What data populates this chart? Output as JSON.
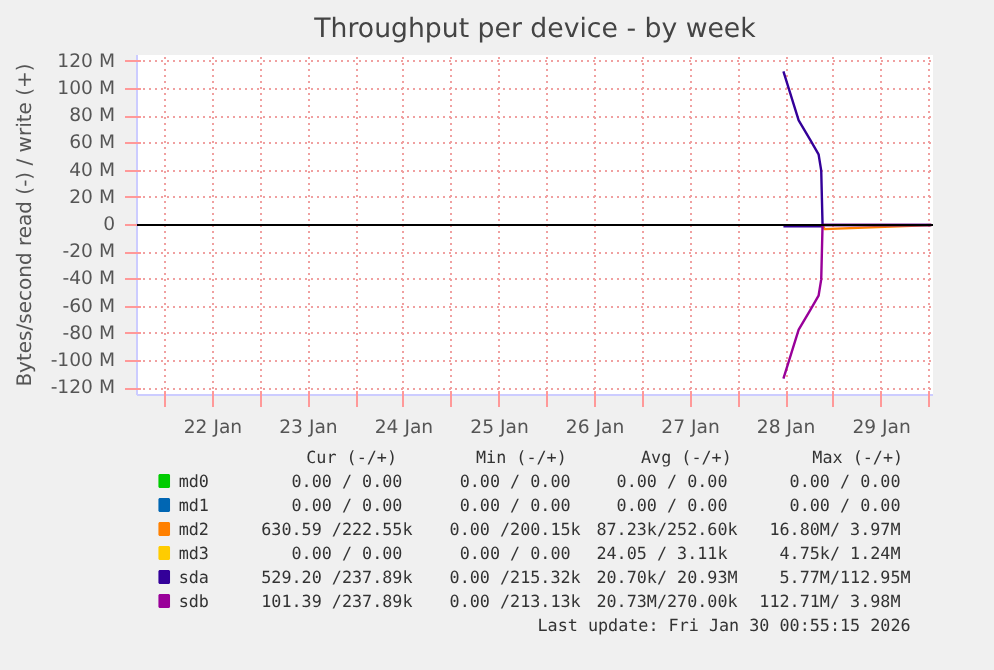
{
  "chart_data": {
    "type": "line",
    "title": "Throughput per device - by week",
    "ylabel": "Bytes/second read (-) / write (+)",
    "x": [
      "2026-01-28T11:20",
      "2026-01-28T15:10",
      "2026-01-28T18:00",
      "2026-01-28T20:10",
      "2026-01-28T20:50",
      "2026-01-28T21:10",
      "2026-01-28T21:40",
      "2026-01-30T00:30"
    ],
    "series": [
      {
        "name": "md0",
        "color": "#00cc00",
        "values": [
          null,
          null,
          null,
          null,
          null,
          null,
          null,
          null
        ]
      },
      {
        "name": "md1",
        "color": "#0066b3",
        "values": [
          null,
          null,
          null,
          null,
          null,
          null,
          null,
          null
        ]
      },
      {
        "name": "md2",
        "color": "#ff8000",
        "values": [
          null,
          null,
          null,
          null,
          null,
          0,
          -3,
          0
        ]
      },
      {
        "name": "md3",
        "color": "#ffcc00",
        "values": [
          null,
          null,
          null,
          null,
          null,
          null,
          null,
          null
        ]
      },
      {
        "name": "sda",
        "color": "#330099",
        "values": [
          113,
          77,
          63,
          52,
          40,
          0,
          0,
          0
        ]
      },
      {
        "color": "#330099",
        "values": [
          -1,
          -1,
          -1,
          -1,
          -1,
          -1,
          null,
          null
        ]
      },
      {
        "name": "sdb",
        "color": "#990099",
        "values": [
          -113,
          -77,
          -63,
          -52,
          -40,
          0,
          0,
          0
        ]
      }
    ],
    "xlim": [
      "2026-01-21T16:55",
      "2026-01-30T00:55"
    ],
    "xticks": [
      {
        "value": "2026-01-22T00:00",
        "label": null
      },
      {
        "value": "2026-01-22T12:00",
        "label": "22 Jan"
      },
      {
        "value": "2026-01-23T00:00",
        "label": null
      },
      {
        "value": "2026-01-23T12:00",
        "label": "23 Jan"
      },
      {
        "value": "2026-01-24T00:00",
        "label": null
      },
      {
        "value": "2026-01-24T12:00",
        "label": "24 Jan"
      },
      {
        "value": "2026-01-25T00:00",
        "label": null
      },
      {
        "value": "2026-01-25T12:00",
        "label": "25 Jan"
      },
      {
        "value": "2026-01-26T00:00",
        "label": null
      },
      {
        "value": "2026-01-26T12:00",
        "label": "26 Jan"
      },
      {
        "value": "2026-01-27T00:00",
        "label": null
      },
      {
        "value": "2026-01-27T12:00",
        "label": "27 Jan"
      },
      {
        "value": "2026-01-28T00:00",
        "label": null
      },
      {
        "value": "2026-01-28T12:00",
        "label": "28 Jan"
      },
      {
        "value": "2026-01-29T00:00",
        "label": null
      },
      {
        "value": "2026-01-29T12:00",
        "label": "29 Jan"
      },
      {
        "value": "2026-01-30T00:00",
        "label": null
      }
    ],
    "ylim": [
      -125,
      125
    ],
    "yticks": [
      {
        "value": -120,
        "label": "-120 M"
      },
      {
        "value": -100,
        "label": "-100 M"
      },
      {
        "value": -80,
        "label": "-80 M"
      },
      {
        "value": -60,
        "label": "-60 M"
      },
      {
        "value": -40,
        "label": "-40 M"
      },
      {
        "value": -20,
        "label": "-20 M"
      },
      0,
      {
        "value": 20,
        "label": "20 M"
      },
      {
        "value": 40,
        "label": "40 M"
      },
      {
        "value": 60,
        "label": "60 M"
      },
      {
        "value": 80,
        "label": "80 M"
      },
      {
        "value": 100,
        "label": "100 M"
      },
      {
        "value": 120,
        "label": "120 M"
      }
    ],
    "ref_lines": [
      {
        "axis": "y",
        "value": 0,
        "color": "#000000"
      }
    ],
    "grid": true,
    "legend": "bottom",
    "marker": "none",
    "line_style": "solid",
    "annotations": [
      "Cur (-/+)",
      "Min (-/+)",
      "Avg (-/+)",
      "Max (-/+)",
      "0.00 /  0.00",
      "0.00 /  0.00",
      "0.00 /  0.00",
      "0.00 /  0.00",
      "0.00 /  0.00",
      "0.00 /  0.00",
      "0.00 /  0.00",
      "0.00 /  0.00",
      "630.59 /222.55k",
      "0.00 /200.15k",
      "87.23k/252.60k",
      "16.80M/  3.97M",
      "0.00 /  0.00",
      "0.00 /  0.00",
      "24.05 /  3.11k",
      "4.75k/  1.24M",
      "529.20 /237.89k",
      "0.00 /215.32k",
      "20.70k/ 20.93M",
      "5.77M/112.95M",
      "101.39 /237.89k",
      "0.00 /213.13k",
      "20.73M/270.00k",
      "112.71M/  3.98M",
      "Last update: Fri Jan 30 00:55:15 2026"
    ]
  }
}
